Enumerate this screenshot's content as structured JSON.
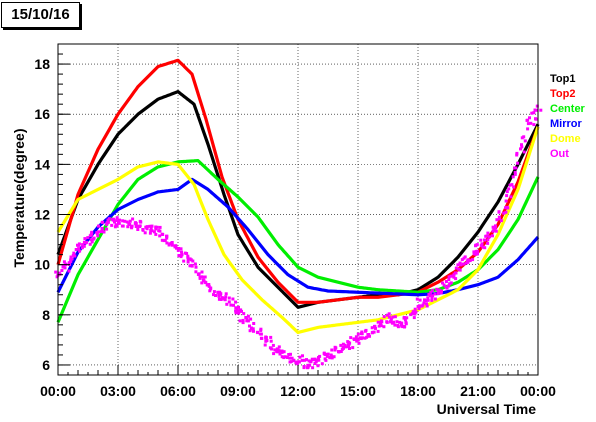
{
  "chart_data": {
    "type": "scatter",
    "title": "15/10/16",
    "xlabel": "Universal Time",
    "ylabel": "Temperature(degree)",
    "xlim": [
      0,
      24
    ],
    "ylim": [
      5.6,
      18.8
    ],
    "xticks": [
      0,
      3,
      6,
      9,
      12,
      15,
      18,
      21,
      24
    ],
    "xtick_labels": [
      "00:00",
      "03:00",
      "06:00",
      "09:00",
      "12:00",
      "15:00",
      "18:00",
      "21:00",
      "00:00"
    ],
    "yticks": [
      6,
      8,
      10,
      12,
      14,
      16,
      18
    ],
    "ytick_labels": [
      "6",
      "8",
      "10",
      "12",
      "14",
      "16",
      "18"
    ],
    "grid": true,
    "legend_position": "right",
    "series": [
      {
        "name": "Top1",
        "color": "#000000",
        "points": [
          [
            0,
            10.4
          ],
          [
            1,
            12.6
          ],
          [
            2,
            14.0
          ],
          [
            3,
            15.2
          ],
          [
            4,
            16.0
          ],
          [
            5,
            16.6
          ],
          [
            6,
            16.9
          ],
          [
            6.8,
            16.4
          ],
          [
            7.5,
            14.8
          ],
          [
            8.3,
            12.8
          ],
          [
            9,
            11.2
          ],
          [
            10,
            9.9
          ],
          [
            11,
            9.1
          ],
          [
            12,
            8.3
          ],
          [
            13,
            8.5
          ],
          [
            14,
            8.6
          ],
          [
            15,
            8.7
          ],
          [
            16,
            8.8
          ],
          [
            17,
            8.8
          ],
          [
            18,
            9.0
          ],
          [
            19,
            9.5
          ],
          [
            20,
            10.3
          ],
          [
            21,
            11.3
          ],
          [
            22,
            12.5
          ],
          [
            23,
            14.0
          ],
          [
            24,
            15.6
          ]
        ]
      },
      {
        "name": "Top2",
        "color": "#ff0000",
        "points": [
          [
            0,
            10.0
          ],
          [
            1,
            12.8
          ],
          [
            2,
            14.6
          ],
          [
            3,
            16.0
          ],
          [
            4,
            17.1
          ],
          [
            5,
            17.9
          ],
          [
            6,
            18.15
          ],
          [
            6.7,
            17.6
          ],
          [
            7.4,
            15.8
          ],
          [
            8.2,
            13.5
          ],
          [
            9,
            11.8
          ],
          [
            10,
            10.3
          ],
          [
            11,
            9.3
          ],
          [
            12,
            8.5
          ],
          [
            13,
            8.5
          ],
          [
            14,
            8.6
          ],
          [
            15,
            8.7
          ],
          [
            16,
            8.7
          ],
          [
            17,
            8.8
          ],
          [
            18,
            8.9
          ],
          [
            19,
            9.3
          ],
          [
            20,
            9.8
          ],
          [
            21,
            10.5
          ],
          [
            22,
            11.6
          ],
          [
            23,
            13.3
          ],
          [
            24,
            15.5
          ]
        ]
      },
      {
        "name": "Center",
        "color": "#00ee00",
        "points": [
          [
            0,
            7.7
          ],
          [
            1,
            9.6
          ],
          [
            2,
            11.0
          ],
          [
            3,
            12.4
          ],
          [
            4,
            13.4
          ],
          [
            5,
            13.9
          ],
          [
            6,
            14.1
          ],
          [
            7,
            14.15
          ],
          [
            8,
            13.4
          ],
          [
            9,
            12.7
          ],
          [
            10,
            11.9
          ],
          [
            11,
            10.8
          ],
          [
            12,
            9.9
          ],
          [
            13,
            9.5
          ],
          [
            14,
            9.3
          ],
          [
            15,
            9.1
          ],
          [
            16,
            9.0
          ],
          [
            17,
            8.95
          ],
          [
            18,
            8.9
          ],
          [
            19,
            9.0
          ],
          [
            20,
            9.3
          ],
          [
            21,
            9.8
          ],
          [
            22,
            10.6
          ],
          [
            23,
            11.8
          ],
          [
            24,
            13.5
          ]
        ]
      },
      {
        "name": "Mirror",
        "color": "#0000ff",
        "points": [
          [
            0,
            8.9
          ],
          [
            1,
            10.5
          ],
          [
            2,
            11.5
          ],
          [
            3,
            12.2
          ],
          [
            4,
            12.6
          ],
          [
            5,
            12.9
          ],
          [
            6,
            13.0
          ],
          [
            6.7,
            13.4
          ],
          [
            7.5,
            13.0
          ],
          [
            8.5,
            12.3
          ],
          [
            9.5,
            11.4
          ],
          [
            10.5,
            10.4
          ],
          [
            11.5,
            9.6
          ],
          [
            12.5,
            9.1
          ],
          [
            13.5,
            8.95
          ],
          [
            15,
            8.9
          ],
          [
            16.5,
            8.85
          ],
          [
            18,
            8.8
          ],
          [
            19,
            8.85
          ],
          [
            20,
            9.0
          ],
          [
            21,
            9.2
          ],
          [
            22,
            9.5
          ],
          [
            23,
            10.2
          ],
          [
            24,
            11.1
          ]
        ]
      },
      {
        "name": "Dome",
        "color": "#ffff00",
        "points": [
          [
            0,
            11.3
          ],
          [
            1,
            12.6
          ],
          [
            2,
            13.0
          ],
          [
            3,
            13.4
          ],
          [
            4,
            13.9
          ],
          [
            5,
            14.1
          ],
          [
            6,
            14.0
          ],
          [
            6.8,
            13.2
          ],
          [
            7.5,
            11.8
          ],
          [
            8.3,
            10.4
          ],
          [
            9.2,
            9.4
          ],
          [
            10.2,
            8.6
          ],
          [
            11.2,
            7.9
          ],
          [
            12,
            7.3
          ],
          [
            13,
            7.5
          ],
          [
            14,
            7.6
          ],
          [
            15,
            7.7
          ],
          [
            16,
            7.8
          ],
          [
            17,
            8.0
          ],
          [
            18,
            8.2
          ],
          [
            19,
            8.6
          ],
          [
            20,
            9.0
          ],
          [
            21,
            9.8
          ],
          [
            22,
            11.2
          ],
          [
            23,
            13.0
          ],
          [
            24,
            15.5
          ]
        ]
      },
      {
        "name": "Out",
        "color": "#ff00ff",
        "points": [
          [
            0,
            9.6
          ],
          [
            0.5,
            10.0
          ],
          [
            1,
            10.6
          ],
          [
            1.5,
            11.0
          ],
          [
            2,
            11.3
          ],
          [
            2.5,
            11.6
          ],
          [
            3,
            11.7
          ],
          [
            3.5,
            11.7
          ],
          [
            4,
            11.6
          ],
          [
            4.5,
            11.4
          ],
          [
            5,
            11.3
          ],
          [
            5.5,
            11.0
          ],
          [
            6,
            10.6
          ],
          [
            6.5,
            10.2
          ],
          [
            7,
            9.7
          ],
          [
            7.5,
            9.2
          ],
          [
            8,
            8.8
          ],
          [
            8.5,
            8.6
          ],
          [
            9,
            8.2
          ],
          [
            9.5,
            7.7
          ],
          [
            10,
            7.3
          ],
          [
            10.5,
            6.9
          ],
          [
            11,
            6.5
          ],
          [
            11.5,
            6.3
          ],
          [
            12,
            6.2
          ],
          [
            12.5,
            6.0
          ],
          [
            13,
            6.1
          ],
          [
            13.5,
            6.4
          ],
          [
            14,
            6.6
          ],
          [
            14.5,
            6.8
          ],
          [
            15,
            7.0
          ],
          [
            15.5,
            7.3
          ],
          [
            16,
            7.5
          ],
          [
            16.5,
            7.9
          ],
          [
            17,
            7.7
          ],
          [
            17.5,
            7.7
          ],
          [
            18,
            8.4
          ],
          [
            18.5,
            8.6
          ],
          [
            19,
            8.9
          ],
          [
            19.5,
            9.3
          ],
          [
            20,
            9.8
          ],
          [
            20.5,
            10.2
          ],
          [
            21,
            10.6
          ],
          [
            21.5,
            11.1
          ],
          [
            22,
            11.7
          ],
          [
            22.5,
            12.6
          ],
          [
            23,
            14.0
          ],
          [
            23.5,
            15.5
          ],
          [
            24,
            16.3
          ]
        ]
      }
    ]
  }
}
